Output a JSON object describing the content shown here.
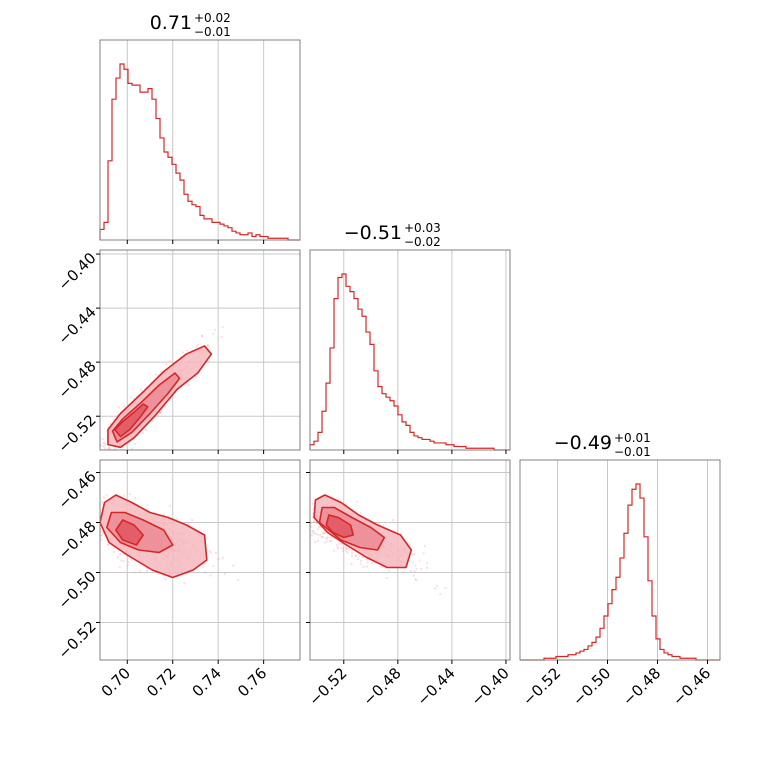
{
  "chart_data": {
    "type": "corner",
    "colors": {
      "main": "#d62728",
      "fill_light": "#f4b8be",
      "fill_mid": "#ec8a93",
      "fill_dark": "#e05560",
      "scatter": "#f2a0a8",
      "grid": "#c8c8c8",
      "frame": "#808080"
    },
    "grid": true,
    "parameters": [
      {
        "range": [
          0.688,
          0.776
        ],
        "ticks": [
          0.7,
          0.72,
          0.74,
          0.76
        ],
        "tick_labels": [
          "0.70",
          "0.72",
          "0.74",
          "0.76"
        ],
        "title": {
          "median": "0.71",
          "plus": "+0.02",
          "minus": "−0.01"
        }
      },
      {
        "range": [
          -0.545,
          -0.397
        ],
        "ticks": [
          -0.52,
          -0.48,
          -0.44,
          -0.4
        ],
        "tick_labels": [
          "−0.52",
          "−0.48",
          "−0.44",
          "−0.40"
        ],
        "title": {
          "median": "−0.51",
          "plus": "+0.03",
          "minus": "−0.02"
        }
      },
      {
        "range": [
          -0.535,
          -0.455
        ],
        "ticks": [
          -0.52,
          -0.5,
          -0.48,
          -0.46
        ],
        "tick_labels": [
          "−0.52",
          "−0.50",
          "−0.48",
          "−0.46"
        ],
        "title": {
          "median": "−0.49",
          "plus": "+0.01",
          "minus": "−0.01"
        }
      }
    ],
    "histograms": [
      {
        "parameter": 0,
        "bin_edges": [
          0.688,
          0.776
        ],
        "counts": [
          0.06,
          0.1,
          0.45,
          0.8,
          0.92,
          1.0,
          0.97,
          0.89,
          0.88,
          0.88,
          0.84,
          0.84,
          0.86,
          0.8,
          0.69,
          0.58,
          0.5,
          0.47,
          0.43,
          0.38,
          0.34,
          0.26,
          0.22,
          0.2,
          0.19,
          0.14,
          0.12,
          0.12,
          0.1,
          0.1,
          0.09,
          0.08,
          0.07,
          0.05,
          0.04,
          0.03,
          0.03,
          0.04,
          0.02,
          0.03,
          0.02,
          0.02,
          0.01,
          0.01,
          0.01,
          0.01,
          0.01,
          0.0,
          0.0,
          0.0
        ]
      },
      {
        "parameter": 1,
        "bin_edges": [
          -0.545,
          -0.397
        ],
        "counts": [
          0.03,
          0.05,
          0.1,
          0.22,
          0.38,
          0.58,
          0.86,
          0.98,
          1.0,
          0.93,
          0.9,
          0.86,
          0.8,
          0.76,
          0.67,
          0.6,
          0.45,
          0.36,
          0.32,
          0.3,
          0.28,
          0.25,
          0.2,
          0.16,
          0.14,
          0.1,
          0.08,
          0.07,
          0.06,
          0.06,
          0.05,
          0.04,
          0.04,
          0.04,
          0.03,
          0.03,
          0.02,
          0.02,
          0.02,
          0.01,
          0.01,
          0.01,
          0.01,
          0.01,
          0.01,
          0.01,
          0.0,
          0.0,
          0.0,
          0.0
        ]
      },
      {
        "parameter": 2,
        "bin_edges": [
          -0.535,
          -0.455
        ],
        "counts": [
          0.0,
          0.0,
          0.0,
          0.0,
          0.0,
          0.0,
          0.01,
          0.01,
          0.01,
          0.02,
          0.02,
          0.02,
          0.03,
          0.03,
          0.04,
          0.05,
          0.06,
          0.08,
          0.1,
          0.13,
          0.18,
          0.25,
          0.32,
          0.4,
          0.47,
          0.58,
          0.72,
          0.88,
          0.97,
          1.0,
          0.92,
          0.7,
          0.45,
          0.25,
          0.12,
          0.06,
          0.04,
          0.03,
          0.02,
          0.02,
          0.01,
          0.01,
          0.01,
          0.01,
          0.0,
          0.0,
          0.0,
          0.0,
          0.0,
          0.0
        ]
      }
    ],
    "scatter_panels": [
      {
        "x_param": 0,
        "y_param": 1,
        "center": [
          0.702,
          -0.522
        ],
        "sd": [
          0.011,
          0.019
        ],
        "correlation": 0.93,
        "n_points": 700,
        "contours": [
          {
            "level": "outer",
            "points": [
              [
                0.6915,
                -0.53
              ],
              [
                0.6915,
                -0.541
              ],
              [
                0.697,
                -0.543
              ],
              [
                0.703,
                -0.536
              ],
              [
                0.712,
                -0.52
              ],
              [
                0.722,
                -0.5
              ],
              [
                0.731,
                -0.488
              ],
              [
                0.737,
                -0.474
              ],
              [
                0.734,
                -0.468
              ],
              [
                0.726,
                -0.474
              ],
              [
                0.716,
                -0.487
              ],
              [
                0.707,
                -0.502
              ],
              [
                0.697,
                -0.518
              ]
            ]
          },
          {
            "level": "mid",
            "points": [
              [
                0.6935,
                -0.531
              ],
              [
                0.6955,
                -0.539
              ],
              [
                0.702,
                -0.532
              ],
              [
                0.71,
                -0.518
              ],
              [
                0.718,
                -0.503
              ],
              [
                0.723,
                -0.492
              ],
              [
                0.721,
                -0.488
              ],
              [
                0.714,
                -0.497
              ],
              [
                0.706,
                -0.51
              ],
              [
                0.698,
                -0.522
              ]
            ]
          },
          {
            "level": "inner",
            "points": [
              [
                0.6945,
                -0.53
              ],
              [
                0.697,
                -0.535
              ],
              [
                0.701,
                -0.53
              ],
              [
                0.706,
                -0.52
              ],
              [
                0.709,
                -0.513
              ],
              [
                0.707,
                -0.511
              ],
              [
                0.703,
                -0.517
              ],
              [
                0.698,
                -0.524
              ]
            ]
          }
        ]
      },
      {
        "x_param": 0,
        "y_param": 2,
        "center": [
          0.703,
          -0.485
        ],
        "sd": [
          0.011,
          0.006
        ],
        "correlation": -0.45,
        "n_points": 700,
        "contours": [
          {
            "level": "outer",
            "points": [
              [
                0.688,
                -0.48
              ],
              [
                0.69,
                -0.472
              ],
              [
                0.695,
                -0.469
              ],
              [
                0.702,
                -0.472
              ],
              [
                0.71,
                -0.476
              ],
              [
                0.718,
                -0.478
              ],
              [
                0.726,
                -0.481
              ],
              [
                0.734,
                -0.485
              ],
              [
                0.735,
                -0.495
              ],
              [
                0.729,
                -0.499
              ],
              [
                0.72,
                -0.502
              ],
              [
                0.711,
                -0.499
              ],
              [
                0.7,
                -0.493
              ],
              [
                0.692,
                -0.488
              ]
            ]
          },
          {
            "level": "mid",
            "points": [
              [
                0.691,
                -0.482
              ],
              [
                0.693,
                -0.476
              ],
              [
                0.699,
                -0.476
              ],
              [
                0.707,
                -0.479
              ],
              [
                0.716,
                -0.483
              ],
              [
                0.72,
                -0.489
              ],
              [
                0.714,
                -0.492
              ],
              [
                0.705,
                -0.491
              ],
              [
                0.697,
                -0.488
              ]
            ]
          },
          {
            "level": "inner",
            "points": [
              [
                0.695,
                -0.483
              ],
              [
                0.698,
                -0.479
              ],
              [
                0.703,
                -0.481
              ],
              [
                0.707,
                -0.485
              ],
              [
                0.704,
                -0.489
              ],
              [
                0.698,
                -0.487
              ]
            ]
          }
        ]
      },
      {
        "x_param": 1,
        "y_param": 2,
        "center": [
          -0.518,
          -0.484
        ],
        "sd": [
          0.019,
          0.006
        ],
        "correlation": -0.75,
        "n_points": 700,
        "contours": [
          {
            "level": "outer",
            "points": [
              [
                -0.542,
                -0.478
              ],
              [
                -0.541,
                -0.471
              ],
              [
                -0.534,
                -0.469
              ],
              [
                -0.522,
                -0.472
              ],
              [
                -0.509,
                -0.477
              ],
              [
                -0.495,
                -0.481
              ],
              [
                -0.478,
                -0.485
              ],
              [
                -0.47,
                -0.491
              ],
              [
                -0.474,
                -0.498
              ],
              [
                -0.488,
                -0.498
              ],
              [
                -0.503,
                -0.494
              ],
              [
                -0.518,
                -0.489
              ],
              [
                -0.532,
                -0.484
              ]
            ]
          },
          {
            "level": "mid",
            "points": [
              [
                -0.538,
                -0.48
              ],
              [
                -0.536,
                -0.474
              ],
              [
                -0.527,
                -0.474
              ],
              [
                -0.514,
                -0.478
              ],
              [
                -0.5,
                -0.482
              ],
              [
                -0.49,
                -0.486
              ],
              [
                -0.495,
                -0.491
              ],
              [
                -0.508,
                -0.49
              ],
              [
                -0.522,
                -0.487
              ]
            ]
          },
          {
            "level": "inner",
            "points": [
              [
                -0.533,
                -0.481
              ],
              [
                -0.531,
                -0.477
              ],
              [
                -0.524,
                -0.478
              ],
              [
                -0.515,
                -0.481
              ],
              [
                -0.513,
                -0.485
              ],
              [
                -0.52,
                -0.486
              ],
              [
                -0.528,
                -0.484
              ]
            ]
          }
        ]
      }
    ]
  }
}
